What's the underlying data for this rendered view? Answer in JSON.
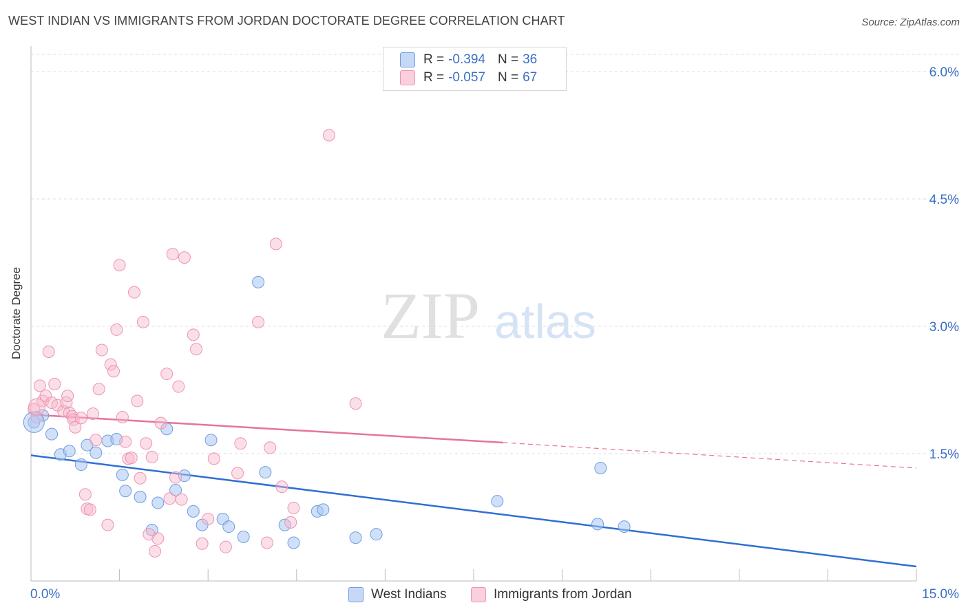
{
  "title": "WEST INDIAN VS IMMIGRANTS FROM JORDAN DOCTORATE DEGREE CORRELATION CHART",
  "source": "Source: ZipAtlas.com",
  "watermark": {
    "zip": "ZIP",
    "atlas": "atlas"
  },
  "legend": {
    "r_label": "R =",
    "n_label": "N =",
    "series": [
      {
        "r": "-0.394",
        "n": "36",
        "color": "#a9c7f2"
      },
      {
        "r": "-0.057",
        "n": "67",
        "color": "#f6b8cb"
      }
    ]
  },
  "bottom_legend": [
    "West Indians",
    "Immigrants from Jordan"
  ],
  "chart_data": {
    "type": "scatter",
    "title": "WEST INDIAN VS IMMIGRANTS FROM JORDAN DOCTORATE DEGREE CORRELATION CHART",
    "xlabel": "",
    "ylabel": "Doctorate Degree",
    "xlim": [
      0,
      15
    ],
    "ylim": [
      0,
      6.3
    ],
    "x_tick_labels": [
      "0.0%",
      "15.0%"
    ],
    "y_ticks": [
      1.5,
      3.0,
      4.5,
      6.0
    ],
    "y_tick_labels": [
      "1.5%",
      "3.0%",
      "4.5%",
      "6.0%"
    ],
    "grid": true,
    "legend_position": "top-center",
    "series": [
      {
        "name": "West Indians",
        "color": "#5b93e0",
        "line_color": "#2f6fd2",
        "trend": {
          "x": [
            0.0,
            15.0
          ],
          "y": [
            1.48,
            0.17
          ]
        },
        "points": [
          [
            0.05,
            1.87
          ],
          [
            0.2,
            1.95
          ],
          [
            0.35,
            1.73
          ],
          [
            0.5,
            1.49
          ],
          [
            0.65,
            1.53
          ],
          [
            0.85,
            1.37
          ],
          [
            0.95,
            1.6
          ],
          [
            1.1,
            1.51
          ],
          [
            1.3,
            1.65
          ],
          [
            1.45,
            1.67
          ],
          [
            1.55,
            1.25
          ],
          [
            1.6,
            1.06
          ],
          [
            1.85,
            0.99
          ],
          [
            2.05,
            0.6
          ],
          [
            2.15,
            0.92
          ],
          [
            2.3,
            1.79
          ],
          [
            2.45,
            1.07
          ],
          [
            2.6,
            1.24
          ],
          [
            2.75,
            0.82
          ],
          [
            2.9,
            0.66
          ],
          [
            3.05,
            1.66
          ],
          [
            3.25,
            0.73
          ],
          [
            3.35,
            0.64
          ],
          [
            3.6,
            0.52
          ],
          [
            3.85,
            3.52
          ],
          [
            3.97,
            1.28
          ],
          [
            4.3,
            0.66
          ],
          [
            4.45,
            0.45
          ],
          [
            4.85,
            0.82
          ],
          [
            4.95,
            0.84
          ],
          [
            5.5,
            0.51
          ],
          [
            5.85,
            0.55
          ],
          [
            7.9,
            0.94
          ],
          [
            9.6,
            0.67
          ],
          [
            9.65,
            1.33
          ],
          [
            10.05,
            0.64
          ]
        ]
      },
      {
        "name": "Immigrants from Jordan",
        "color": "#f29ab6",
        "line_color": "#e8739a",
        "trend": {
          "x": [
            0.0,
            8.0
          ],
          "y": [
            1.96,
            1.63
          ]
        },
        "trend_dashed": {
          "x": [
            8.0,
            15.0
          ],
          "y": [
            1.63,
            1.33
          ]
        },
        "points": [
          [
            0.05,
            2.02
          ],
          [
            0.1,
            1.93
          ],
          [
            0.15,
            2.3
          ],
          [
            0.2,
            2.12
          ],
          [
            0.25,
            2.18
          ],
          [
            0.3,
            2.7
          ],
          [
            0.35,
            2.1
          ],
          [
            0.4,
            2.32
          ],
          [
            0.45,
            2.07
          ],
          [
            0.55,
            2.0
          ],
          [
            0.6,
            2.1
          ],
          [
            0.62,
            2.18
          ],
          [
            0.65,
            1.98
          ],
          [
            0.7,
            1.94
          ],
          [
            0.72,
            1.9
          ],
          [
            0.75,
            1.81
          ],
          [
            0.85,
            1.92
          ],
          [
            0.92,
            1.02
          ],
          [
            0.95,
            0.85
          ],
          [
            1.0,
            0.84
          ],
          [
            1.05,
            1.97
          ],
          [
            1.1,
            1.66
          ],
          [
            1.15,
            2.26
          ],
          [
            1.2,
            2.72
          ],
          [
            1.3,
            0.66
          ],
          [
            1.35,
            2.55
          ],
          [
            1.4,
            2.47
          ],
          [
            1.45,
            2.96
          ],
          [
            1.5,
            3.72
          ],
          [
            1.55,
            1.93
          ],
          [
            1.6,
            1.64
          ],
          [
            1.65,
            1.44
          ],
          [
            1.7,
            1.45
          ],
          [
            1.75,
            3.4
          ],
          [
            1.8,
            2.12
          ],
          [
            1.85,
            1.21
          ],
          [
            1.9,
            3.05
          ],
          [
            1.95,
            1.62
          ],
          [
            2.0,
            0.55
          ],
          [
            2.05,
            1.46
          ],
          [
            2.1,
            0.35
          ],
          [
            2.15,
            0.5
          ],
          [
            2.2,
            1.86
          ],
          [
            2.3,
            2.44
          ],
          [
            2.35,
            0.97
          ],
          [
            2.4,
            3.85
          ],
          [
            2.45,
            1.22
          ],
          [
            2.5,
            2.29
          ],
          [
            2.55,
            0.96
          ],
          [
            2.6,
            3.81
          ],
          [
            2.75,
            2.9
          ],
          [
            2.8,
            2.73
          ],
          [
            2.9,
            0.44
          ],
          [
            3.0,
            0.73
          ],
          [
            3.1,
            1.44
          ],
          [
            3.3,
            0.4
          ],
          [
            3.5,
            1.27
          ],
          [
            3.55,
            1.62
          ],
          [
            3.85,
            3.05
          ],
          [
            4.0,
            0.45
          ],
          [
            4.05,
            1.57
          ],
          [
            4.15,
            3.97
          ],
          [
            4.25,
            1.11
          ],
          [
            4.4,
            0.69
          ],
          [
            4.45,
            0.86
          ],
          [
            5.05,
            5.25
          ],
          [
            5.5,
            2.09
          ]
        ]
      }
    ]
  }
}
